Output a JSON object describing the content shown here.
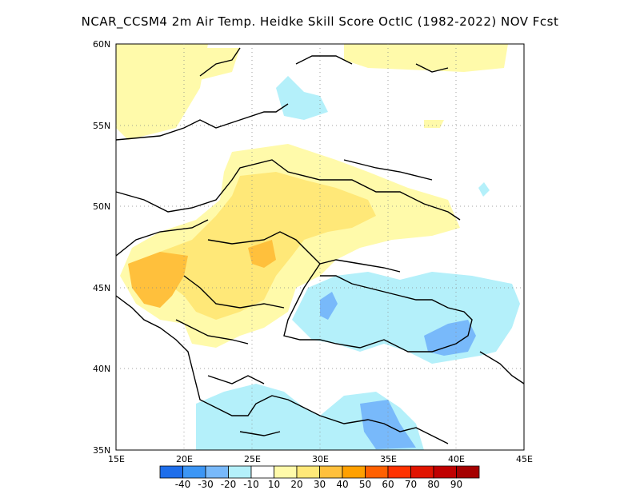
{
  "title": "NCAR_CCSM4  2m Air Temp. Heidke Skill Score OctIC (1982-2022) NOV Fcst",
  "map": {
    "lon_range": [
      15,
      45
    ],
    "lat_range": [
      35,
      60
    ],
    "lon_ticks": [
      "15E",
      "20E",
      "25E",
      "30E",
      "35E",
      "40E",
      "45E"
    ],
    "lat_ticks": [
      "35N",
      "40N",
      "45N",
      "50N",
      "55N",
      "60N"
    ],
    "grid": "dotted"
  },
  "colorbar": {
    "labels": [
      "-40",
      "-30",
      "-20",
      "-10",
      "10",
      "20",
      "30",
      "40",
      "50",
      "60",
      "70",
      "80",
      "90"
    ],
    "colors": [
      "#1e6eeb",
      "#3c96f5",
      "#78b9fa",
      "#b4f0fa",
      "#ffffff",
      "#fffaaa",
      "#ffe878",
      "#ffc03c",
      "#ffa000",
      "#ff6000",
      "#ff3200",
      "#e11400",
      "#c00000",
      "#a50000"
    ]
  }
}
